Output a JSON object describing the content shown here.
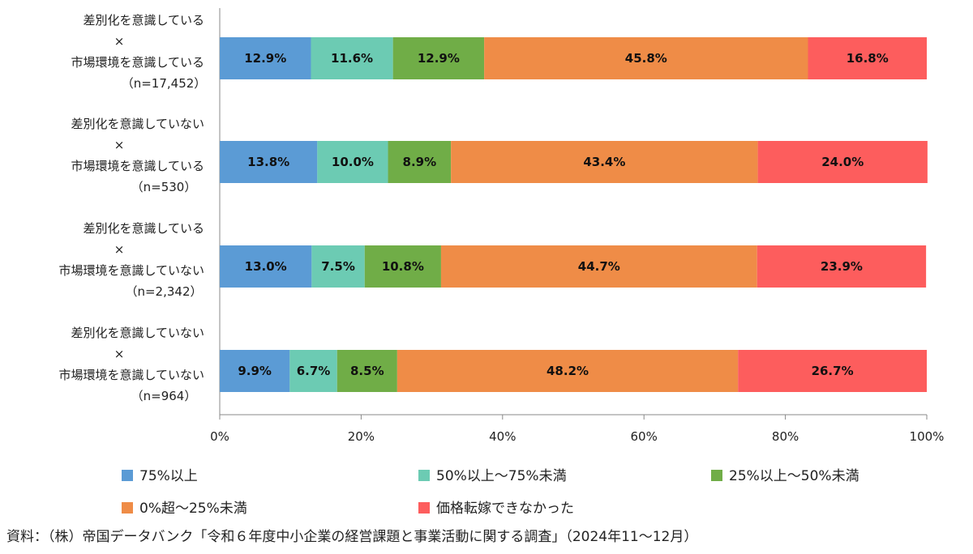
{
  "chart_data": {
    "type": "bar",
    "orientation": "horizontal",
    "stacked": true,
    "percent": true,
    "categories": [
      [
        "差別化を意識している",
        "×",
        "市場環境を意識している",
        "（n=17,452）"
      ],
      [
        "差別化を意識していない",
        "×",
        "市場環境を意識している",
        "（n=530）"
      ],
      [
        "差別化を意識している",
        "×",
        "市場環境を意識していない",
        "（n=2,342）"
      ],
      [
        "差別化を意識していない",
        "×",
        "市場環境を意識していない",
        "（n=964）"
      ]
    ],
    "series": [
      {
        "name": "75%以上",
        "color": "#5b9bd5",
        "values": [
          12.9,
          13.8,
          13.0,
          9.9
        ],
        "labels": [
          "12.9%",
          "13.8%",
          "13.0%",
          "9.9%"
        ]
      },
      {
        "name": "50%以上～75%未満",
        "color": "#6ccbb3",
        "values": [
          11.6,
          10.0,
          7.5,
          6.7
        ],
        "labels": [
          "11.6%",
          "10.0%",
          "7.5%",
          "6.7%"
        ]
      },
      {
        "name": "25%以上～50%未満",
        "color": "#70ad47",
        "values": [
          12.9,
          8.9,
          10.8,
          8.5
        ],
        "labels": [
          "12.9%",
          "8.9%",
          "10.8%",
          "8.5%"
        ]
      },
      {
        "name": "0%超～25%未満",
        "color": "#ef8c47",
        "values": [
          45.8,
          43.4,
          44.7,
          48.2
        ],
        "labels": [
          "45.8%",
          "43.4%",
          "44.7%",
          "48.2%"
        ]
      },
      {
        "name": "価格転嫁できなかった",
        "color": "#fd5d5d",
        "values": [
          16.8,
          24.0,
          23.9,
          26.7
        ],
        "labels": [
          "16.8%",
          "24.0%",
          "23.9%",
          "26.7%"
        ]
      }
    ],
    "xlim": [
      0,
      100
    ],
    "xticks": [
      "0%",
      "20%",
      "40%",
      "60%",
      "80%",
      "100%"
    ],
    "grid": false,
    "legend_position": "bottom"
  },
  "source_note": "資料：（株）帝国データバンク「令和６年度中小企業の経営課題と事業活動に関する調査」（2024年11～12月）"
}
